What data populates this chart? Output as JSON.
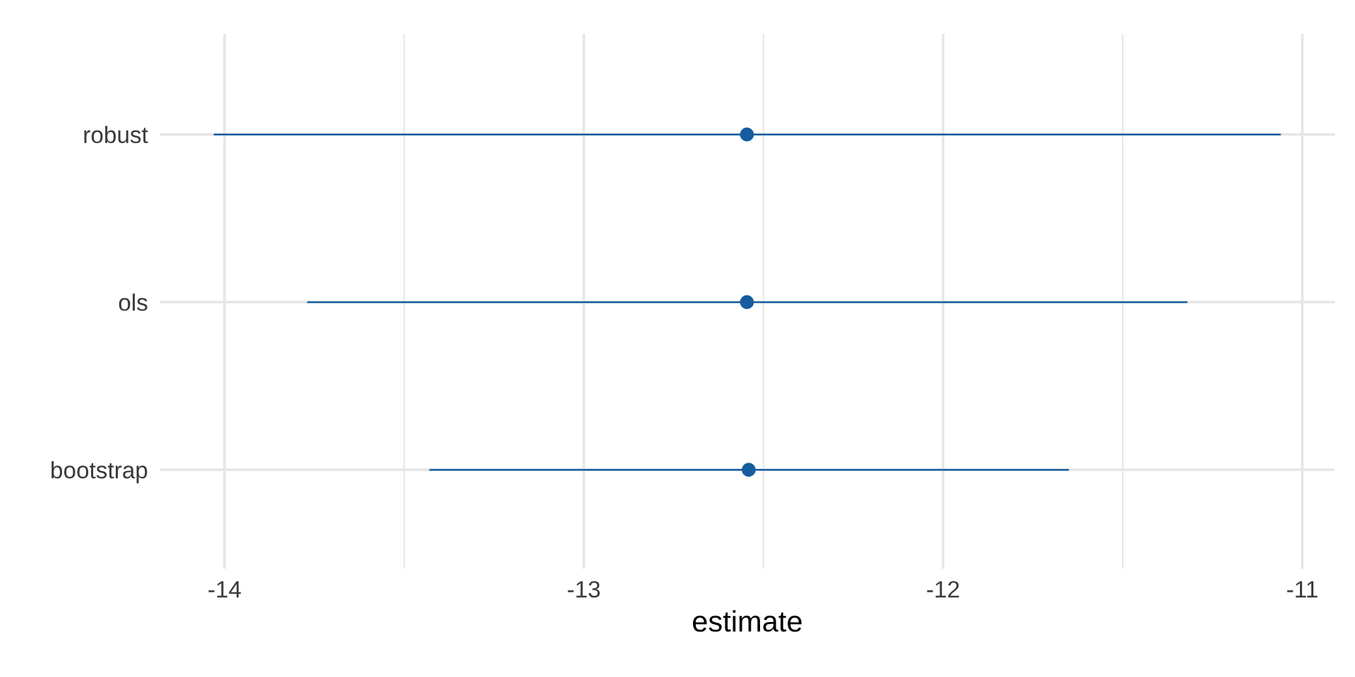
{
  "chart_data": {
    "type": "scatter",
    "orientation": "horizontal",
    "xlabel": "estimate",
    "categories": [
      "robust",
      "ols",
      "bootstrap"
    ],
    "series": [
      {
        "color": "#165d9f",
        "values": [
          -12.546,
          -12.546,
          -12.541
        ],
        "errors": [
          [
            -14.03,
            -11.06
          ],
          [
            -13.77,
            -11.32
          ],
          [
            -13.43,
            -11.65
          ]
        ]
      }
    ],
    "xlim": [
      -14.18,
      -10.91
    ],
    "xticks": [
      -14,
      {
        "value": -13.5,
        "label": null
      },
      -13,
      {
        "value": -12.5,
        "label": null
      },
      -12,
      {
        "value": -11.5,
        "label": null
      },
      -11
    ],
    "grid": true,
    "marker": "circle",
    "legend": false
  }
}
